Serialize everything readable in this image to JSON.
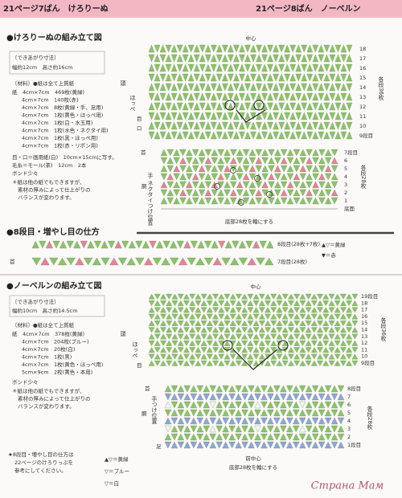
{
  "header": {
    "left": "21ページ7ばん　けろりーぬ",
    "right": "21ページ8ばん　ノーベルン"
  },
  "kerorinu": {
    "title": "●けろりーぬの組み立て図",
    "size_heading": "〔できあがり寸法〕",
    "size": "幅約12cm　高さ約16cm",
    "materials_heading": "〔材料〕●紙は全て上質紙",
    "materials": [
      "紙　4cm×7cm　469枚(黄緑)",
      "4cm×7cm　140枚(赤)",
      "4cm×7cm　8枚(黄緑・手、足用)",
      "4cm×7cm　1枚(黄色・ほっぺ用)",
      "4cm×7cm　1枚(白・水玉用)",
      "4cm×7cm　1枚(水色・ネクタイ用)",
      "4cm×7cm　1枚(黒・ほっぺ用)",
      "4cm×7cm　1枚(赤・リボン用)"
    ],
    "extras": [
      "目・口＝画用紙(白)　10cm×15cmに写す。",
      "毛糸＝モール(茶)　12cm　2本",
      "ボンド少々"
    ],
    "notes": [
      "＊紙は他の紙でもできますが、",
      "素材の厚みによって仕上がりの",
      "バランスが変わります。"
    ],
    "diagram": {
      "center": "中心",
      "head": "頭",
      "cheek": "ほっぺ",
      "eye": "目",
      "mouth": "口",
      "per_row_head": "各段36枚",
      "rows_head": [
        "18",
        "17",
        "16",
        "15",
        "14",
        "13",
        "12",
        "11",
        "10",
        "9段目"
      ],
      "neck": "首",
      "body": "胴",
      "hand_tie": "手 ネクタイつけ位置",
      "per_row_body": "各段28枚",
      "rows_body": [
        "7段目",
        "6",
        "5",
        "4",
        "3",
        "2",
        "1",
        "底面"
      ],
      "base": "底部28枚を輪にする"
    }
  },
  "increase": {
    "title": "●8段目・増やし目の仕方",
    "row8": "8段目(28枚+7枚)",
    "row7": "7段目(28枚)",
    "neck": "首",
    "legend": [
      "▲▽＝黄緑",
      "▼＝赤"
    ]
  },
  "noberun": {
    "title": "●ノーベルンの組み立て図",
    "size_heading": "〔できあがり寸法〕",
    "size": "幅約10cm　高さ約14.5cm",
    "materials_heading": "〔材料〕●紙は全て上質紙",
    "materials": [
      "紙　4cm×7cm　378枚(黄緑)",
      "4cm×7cm　204枚(ブルー)",
      "4cm×7cm　20枚(白)",
      "4cm×7cm　1枚(黒)",
      "4cm×7cm　1枚(黄色・ほっぺ用)",
      "5cm×9cm　2枚(黄色・本用)"
    ],
    "extras": [
      "ボンド少々"
    ],
    "notes": [
      "＊紙は他の紙でもできますが、",
      "素材の厚みによって仕上がりの",
      "バランスが変わります。"
    ],
    "star_note": [
      "★8段目・増やし目の仕方は",
      "22ページのけろりっぷを",
      "参考にしてください。"
    ],
    "legend": [
      "▲▽＝黄緑",
      "▽＝ブルー",
      "▽＝白"
    ],
    "diagram": {
      "center": "中心",
      "head": "頭",
      "cheek": "ほっぺ",
      "eye": "目",
      "per_row_head": "各段36枚",
      "rows_head": [
        "19段目",
        "18",
        "17",
        "16",
        "15",
        "14",
        "13",
        "12",
        "11",
        "10",
        "9段目"
      ],
      "neck": "首",
      "body": "胴",
      "hand": "手つけ位置",
      "foot": "足",
      "per_row_body": "各段28枚",
      "rows_body": [
        "8段目",
        "7",
        "6",
        "5",
        "4",
        "3",
        "2",
        "1段目"
      ],
      "front": "前中心",
      "base": "底部28枚を輪にする"
    }
  },
  "watermark": "Страна Мам"
}
